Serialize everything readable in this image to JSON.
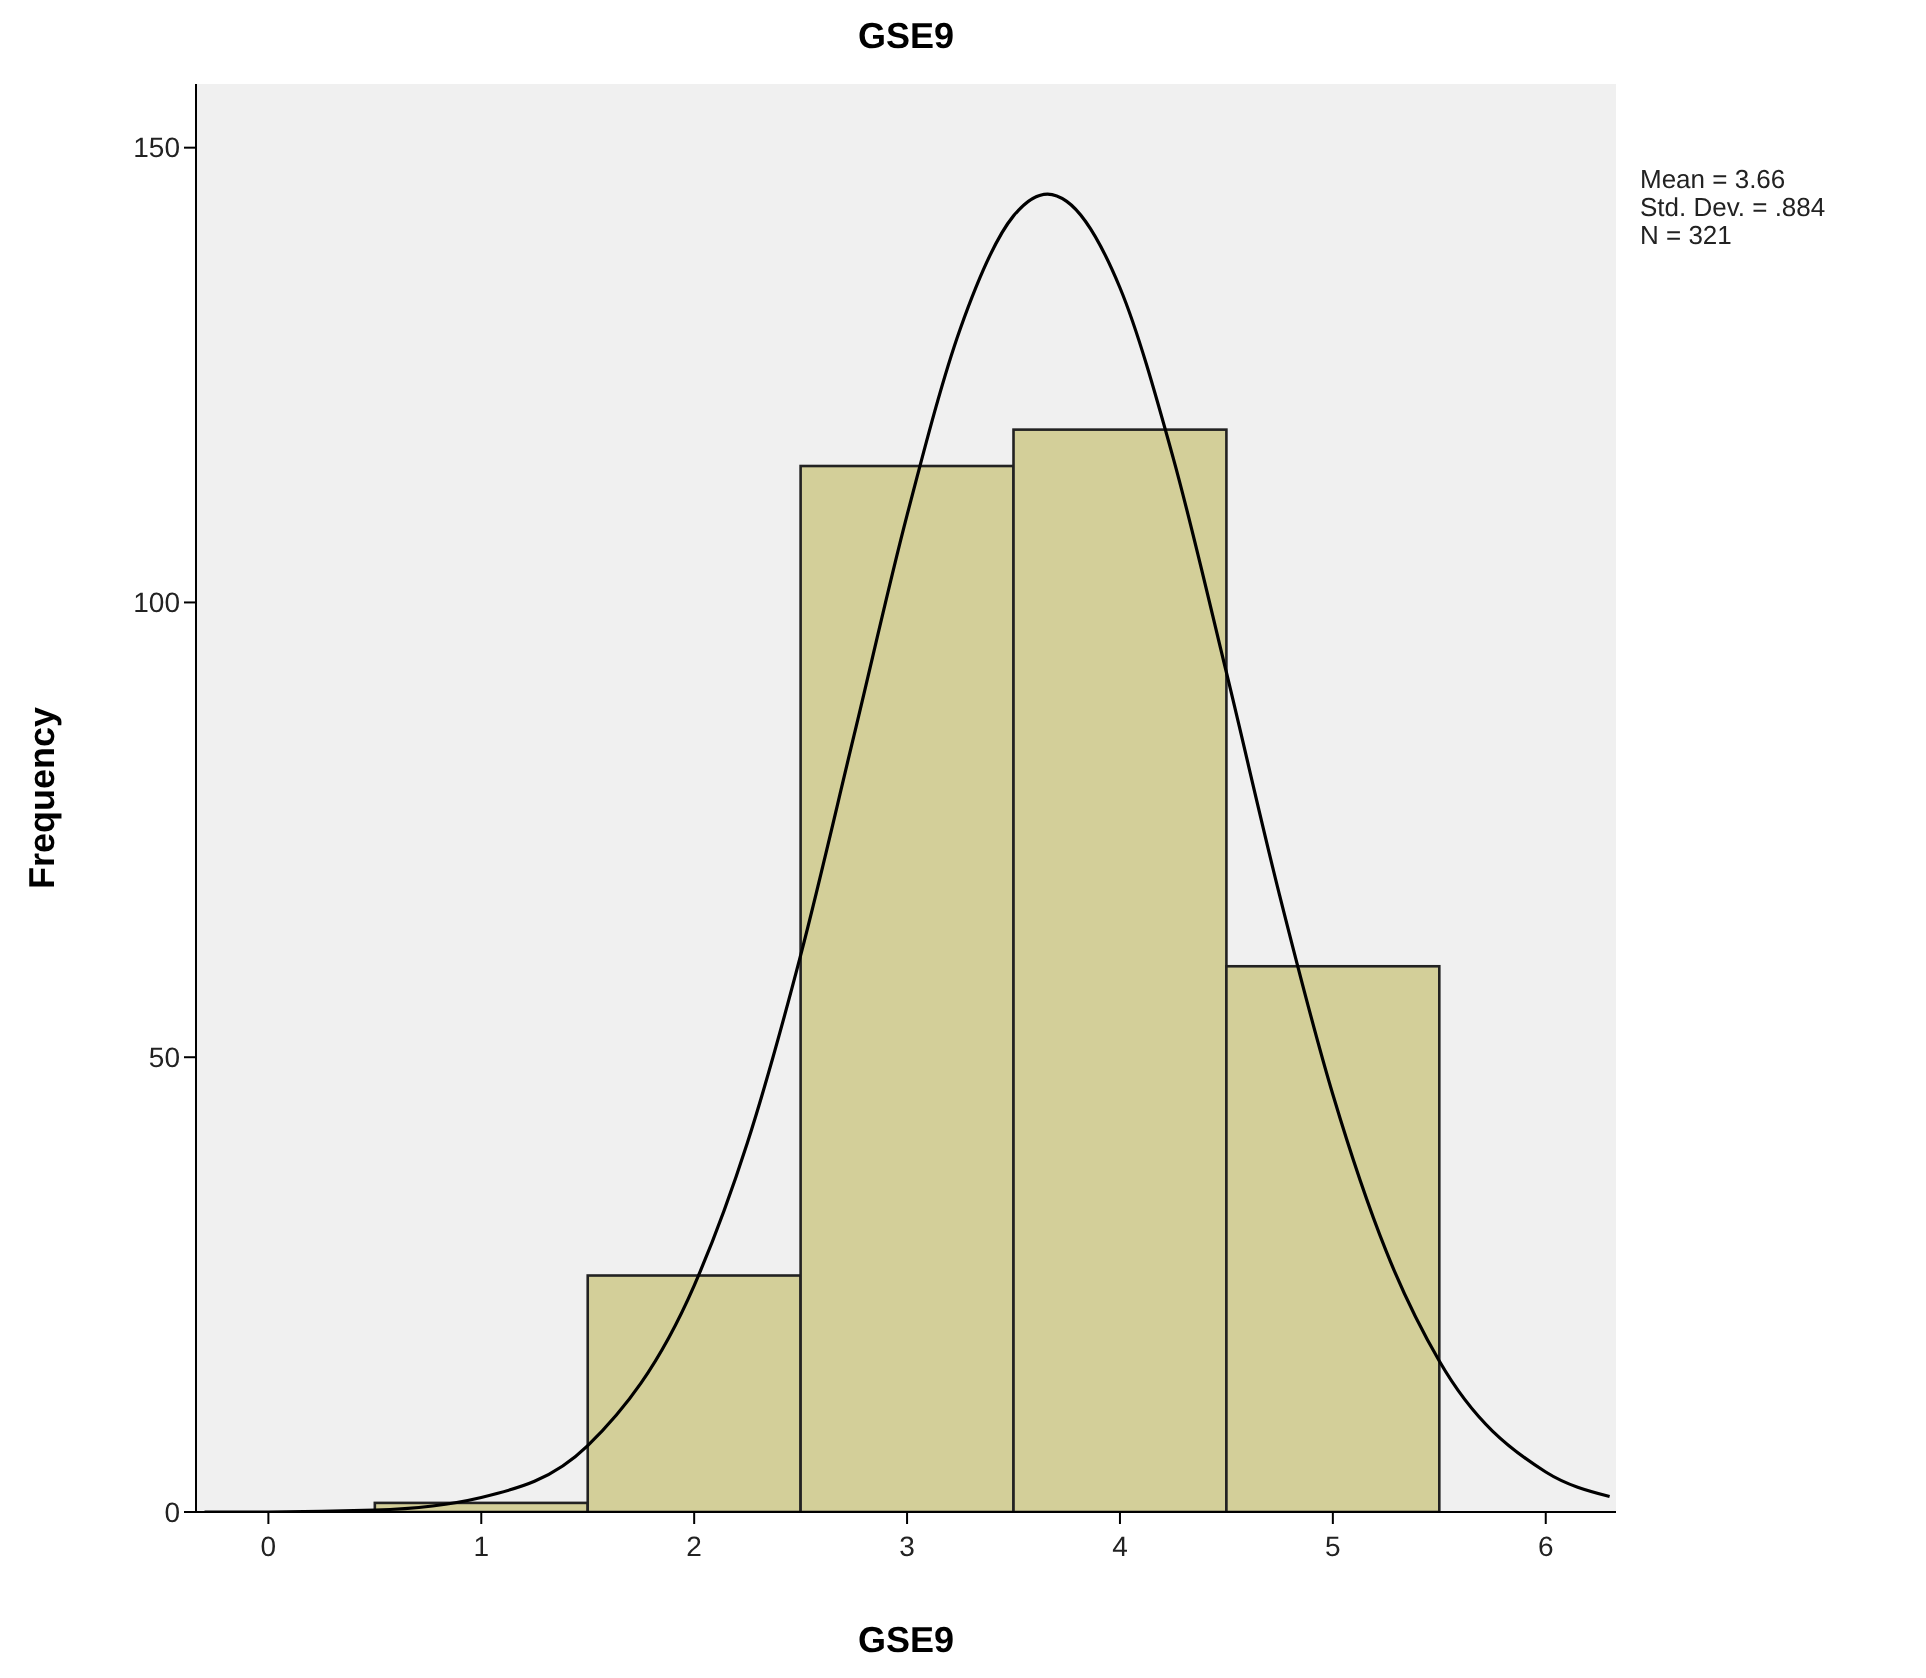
{
  "chart_data": {
    "type": "histogram",
    "title": "GSE9",
    "xlabel": "GSE9",
    "ylabel": "Frequency",
    "bins": [
      0.5,
      1.5,
      2.5,
      3.5,
      4.5,
      5.5
    ],
    "values": [
      1,
      26,
      115,
      119,
      60
    ],
    "color": "#d3cf99",
    "series": [
      {
        "type": "line",
        "color": "#000000",
        "x": [
          -0.3,
          0,
          0.5,
          1,
          1.5,
          2,
          2.25,
          2.5,
          2.75,
          3,
          3.25,
          3.5,
          3.66,
          3.75,
          4,
          4.25,
          4.5,
          4.75,
          5,
          5.25,
          5.5,
          6,
          6.3
        ],
        "values": [
          0,
          0,
          0.2,
          1.6,
          7.3,
          24.9,
          40.6,
          61.2,
          85.3,
          109.6,
          130.1,
          142.5,
          144.9,
          144.1,
          134.6,
          115.9,
          92.3,
          67.8,
          45.9,
          28.7,
          16.6,
          4.4,
          1.7
        ]
      }
    ],
    "xlim": [
      -0.34,
      6.33
    ],
    "xticks": [
      0,
      1,
      2,
      3,
      4,
      5,
      6
    ],
    "ylim": [
      0,
      157
    ],
    "yticks": [
      0,
      50,
      100,
      150
    ],
    "annotations": [
      "Mean = 3.66",
      "Std. Dev. = .884",
      "N = 321"
    ],
    "grid": false
  }
}
